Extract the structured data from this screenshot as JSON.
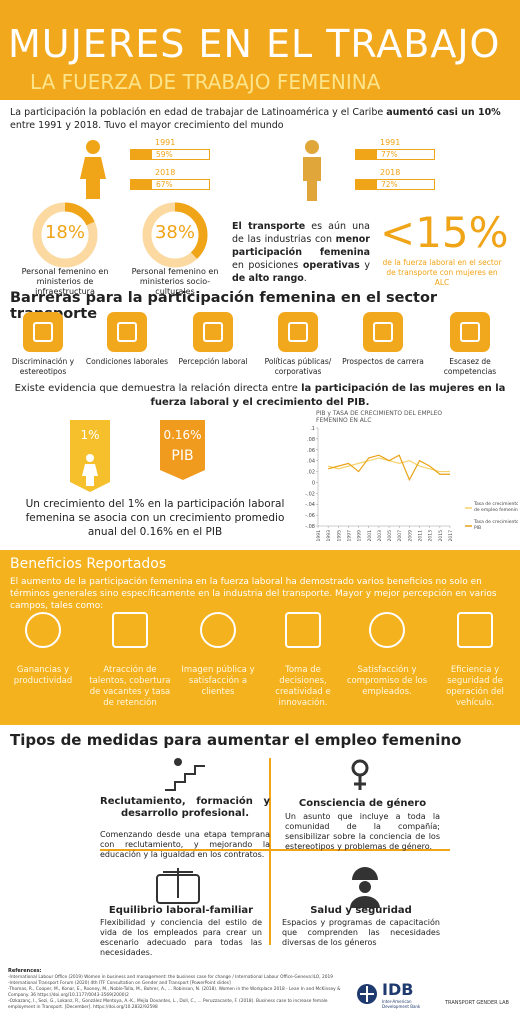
{
  "header": {
    "title": "MUJERES EN EL TRABAJO",
    "subtitle": "LA FUERZA DE TRABAJO FEMENINA"
  },
  "intro": {
    "parts": [
      "La participación la población en edad de trabajar de Latinoamérica y el Caribe ",
      "aumentó casi un 10%",
      " entre 1991 y 2018. Tuvo el mayor crecimiento del mundo"
    ]
  },
  "participation": [
    {
      "rows": [
        {
          "year": "1991",
          "value": "59%"
        },
        {
          "year": "2018",
          "value": "67%"
        }
      ]
    },
    {
      "rows": [
        {
          "year": "1991",
          "value": "77%"
        },
        {
          "year": "2018",
          "value": "72%"
        }
      ]
    }
  ],
  "ministries": [
    {
      "value": "18%",
      "label": "Personal femenino en ministerios de infraestructura"
    },
    {
      "value": "38%",
      "label": "Personal femenino en ministerios socio-culturales"
    }
  ],
  "transport": {
    "parts": [
      "",
      "El transporte",
      " es aún una de las industrias con ",
      "menor participación femenina",
      " en posiciones ",
      "operativas",
      " y ",
      "de alto rango",
      "."
    ]
  },
  "share": {
    "value": "<15%",
    "label": "de la fuerza laboral en el sector de transporte con mujeres en ALC"
  },
  "barriers": {
    "title": "Barreras para la participación femenina en el sector transporte",
    "items": [
      "Discriminación y estereotipos",
      "Condiciones laborales",
      "Percepción laboral",
      "Políticas públicas/ corporativas",
      "Prospectos de carrera",
      "Escasez de competencias"
    ]
  },
  "evidence": {
    "parts": [
      "Existe evidencia que demuestra la relación directa entre ",
      "la participación de las mujeres en la fuerza laboral y el crecimiento del PIB."
    ],
    "box1": "1%",
    "box2": "0.16%",
    "box2_label": "PIB",
    "caption": "Un crecimiento del 1% en la participación laboral femenina se asocia con un crecimiento promedio anual del 0.16% en el PIB"
  },
  "chart": {
    "type": "line",
    "title": "PIB y TASA DE CRECIMIENTO DEL EMPLEO FEMENINO EN ALC",
    "x": [
      1993,
      1995,
      1997,
      1999,
      2001,
      2003,
      2005,
      2007,
      2009,
      2011,
      2013,
      2015,
      2017
    ],
    "series": [
      {
        "name": "Tasa de crecimiento de empleo femenino",
        "color": "#f7d36b",
        "values": [
          0.03,
          0.025,
          0.03,
          0.035,
          0.04,
          0.045,
          0.04,
          0.035,
          0.04,
          0.03,
          0.025,
          0.02,
          0.02
        ]
      },
      {
        "name": "Tasa de crecimiento PIB",
        "color": "#e8a317",
        "values": [
          0.025,
          0.03,
          0.035,
          0.02,
          0.045,
          0.05,
          0.04,
          0.05,
          0.005,
          0.04,
          0.03,
          0.015,
          0.015
        ]
      }
    ],
    "xlim": [
      1991,
      2017
    ],
    "xticks": [
      1991,
      1993,
      1995,
      1997,
      1999,
      2001,
      2003,
      2005,
      2007,
      2009,
      2011,
      2013,
      2015,
      2017
    ],
    "ylim": [
      -0.08,
      0.1
    ],
    "yticks": [
      {
        "value": 0.1,
        "label": ".1"
      },
      {
        "value": 0.08,
        "label": ".08"
      },
      {
        "value": 0.06,
        "label": ".06"
      },
      {
        "value": 0.04,
        "label": ".04"
      },
      {
        "value": 0.02,
        "label": ".02"
      },
      0,
      {
        "value": -0.02,
        "label": "-.02"
      },
      {
        "value": -0.04,
        "label": "-.04"
      },
      {
        "value": -0.06,
        "label": "-.06"
      },
      {
        "value": -0.08,
        "label": "-.08"
      }
    ]
  },
  "benefits": {
    "title": "Beneficios Reportados",
    "text": "El aumento de la participación femenina en la fuerza laboral ha demostrado varios beneficios no solo en términos generales sino específicamente en la industria del transporte. Mayor y mejor percepción en varios campos, tales como:",
    "items": [
      "Ganancias y productividad",
      "Atracción de talentos, cobertura de vacantes y tasa de retención",
      "Imagen pública y satisfacción a clientes",
      "Toma de decisiones, creatividad e innovación.",
      "Satisfacción y compromiso de los empleados.",
      "Eficiencia y seguridad de operación del vehículo."
    ]
  },
  "measures": {
    "title": "Tipos de medidas para aumentar el empleo femenino",
    "items": [
      {
        "title": "Reclutamiento, formación y desarrollo profesional.",
        "text": "Comenzando desde una etapa temprana con reclutamiento, y mejorando la educación y la igualdad en los contratos."
      },
      {
        "title": "Consciencia de género",
        "text": "Un asunto que incluye a toda la comunidad de la compañía; sensibilizar sobre la conciencia de los estereotipos y problemas de género."
      },
      {
        "title": "Equilibrio laboral-familiar",
        "text": "Flexibilidad y conciencia del estilo de vida de los empleados para crear un escenario adecuado para todas las necesidades."
      },
      {
        "title": "Salud y seguridad",
        "text": "Espacios y programas de capacitación que comprenden las necesidades diversas de los géneros"
      }
    ]
  },
  "references": {
    "title": "References:",
    "items": [
      "-International Labour Office (2019) Women in business and management: the business case for change / International Labour Office-Geneva:ILO, 2019",
      "-International Transport Forum (2020) 4th ITF Consultation on Gender and Transport [PowerPoint slides]",
      "-Thomas, R., Cooper, M., Konar, E., Rooney, M., Noble-Tolla, M., Bohrer, A., ... Robinson, N. (2018). Women in the Workplace 2018 - Lean In and McKinsey & Company. 36 https://doi.org/10.1177/0043-3569(2000)2",
      "-Ozkazanç, I., Sezi, G., Lokanz, R., González Montoya, A.-K., Mejía Dovantes, L., Doll, C., ... Peruzzacante, F. (2018). Business case to increase female employment in Transport. [December]. https://doi.org/10.2832/92598"
    ]
  },
  "logos": {
    "idb": "IDB",
    "idb_sub": "Inter-American Development Bank",
    "tgl": "TRANSPORT GENDER LAB"
  }
}
